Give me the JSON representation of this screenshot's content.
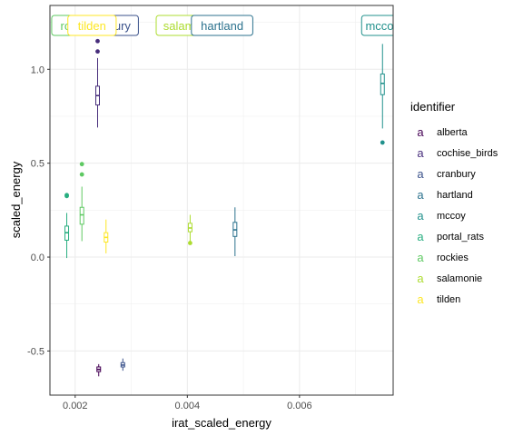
{
  "chart_data": {
    "type": "boxplot",
    "xlabel": "irat_scaled_energy",
    "ylabel": "scaled_energy",
    "xlim": [
      0.00155,
      0.00767
    ],
    "ylim": [
      -0.735,
      1.34
    ],
    "x_ticks": [
      0.002,
      0.004,
      0.006
    ],
    "x_tick_labels": [
      "0.002",
      "0.004",
      "0.006"
    ],
    "y_ticks": [
      -0.5,
      0.0,
      0.5,
      1.0
    ],
    "y_tick_labels": [
      "-0.5",
      "0.0",
      "0.5",
      "1.0"
    ],
    "grid": true,
    "legend": {
      "title": "identifier",
      "position": "right",
      "key_glyph": "a",
      "entries": [
        {
          "name": "alberta",
          "color": "#440154"
        },
        {
          "name": "cochise_birds",
          "color": "#472D7B"
        },
        {
          "name": "cranbury",
          "color": "#3B528B"
        },
        {
          "name": "hartland",
          "color": "#2C728E"
        },
        {
          "name": "mccoy",
          "color": "#21918C"
        },
        {
          "name": "portal_rats",
          "color": "#28AE80"
        },
        {
          "name": "rockies",
          "color": "#5EC962"
        },
        {
          "name": "salamonie",
          "color": "#ADDC30"
        },
        {
          "name": "tilden",
          "color": "#FDE725"
        }
      ]
    },
    "series": [
      {
        "name": "alberta",
        "color": "#440154",
        "x": 0.00242,
        "whisker_low": -0.635,
        "q1": -0.61,
        "median": -0.598,
        "q3": -0.585,
        "whisker_high": -0.57,
        "outliers": []
      },
      {
        "name": "cochise_birds",
        "color": "#472D7B",
        "x": 0.0024,
        "whisker_low": 0.69,
        "q1": 0.81,
        "median": 0.86,
        "q3": 0.91,
        "whisker_high": 1.06,
        "outliers": [
          1.15,
          1.095
        ]
      },
      {
        "name": "cranbury",
        "color": "#3B528B",
        "x": 0.00285,
        "whisker_low": -0.605,
        "q1": -0.585,
        "median": -0.575,
        "q3": -0.562,
        "whisker_high": -0.54,
        "outliers": []
      },
      {
        "name": "hartland",
        "color": "#2C728E",
        "x": 0.00485,
        "whisker_low": 0.005,
        "q1": 0.11,
        "median": 0.145,
        "q3": 0.185,
        "whisker_high": 0.265,
        "outliers": []
      },
      {
        "name": "mccoy",
        "color": "#21918C",
        "x": 0.00748,
        "whisker_low": 0.685,
        "q1": 0.865,
        "median": 0.925,
        "q3": 0.975,
        "whisker_high": 1.135,
        "outliers": [
          0.61
        ]
      },
      {
        "name": "portal_rats",
        "color": "#28AE80",
        "x": 0.00185,
        "whisker_low": -0.005,
        "q1": 0.09,
        "median": 0.13,
        "q3": 0.165,
        "whisker_high": 0.235,
        "outliers": [
          0.33,
          0.325
        ]
      },
      {
        "name": "rockies",
        "color": "#5EC962",
        "x": 0.00212,
        "whisker_low": 0.085,
        "q1": 0.175,
        "median": 0.225,
        "q3": 0.265,
        "whisker_high": 0.375,
        "outliers": [
          0.495,
          0.44
        ]
      },
      {
        "name": "salamonie",
        "color": "#ADDC30",
        "x": 0.00405,
        "whisker_low": 0.075,
        "q1": 0.135,
        "median": 0.155,
        "q3": 0.18,
        "whisker_high": 0.225,
        "outliers": [
          0.075
        ]
      },
      {
        "name": "tilden",
        "color": "#FDE725",
        "x": 0.00255,
        "whisker_low": 0.02,
        "q1": 0.08,
        "median": 0.105,
        "q3": 0.13,
        "whisker_high": 0.2,
        "outliers": []
      }
    ],
    "top_labels": [
      {
        "text": "r",
        "color": "#2C728E",
        "x": 0.0014
      },
      {
        "text": "rockies",
        "color": "#5EC962",
        "x": 0.00207
      },
      {
        "text": "cranbury",
        "color": "#3B528B",
        "x": 0.00258
      },
      {
        "text": "tilden",
        "color": "#FDE725",
        "x": 0.0023
      },
      {
        "text": "salamonie",
        "color": "#ADDC30",
        "x": 0.00405
      },
      {
        "text": "hartland",
        "color": "#2C728E",
        "x": 0.00462
      },
      {
        "text": "mccoy",
        "color": "#21918C",
        "x": 0.00748
      }
    ]
  }
}
